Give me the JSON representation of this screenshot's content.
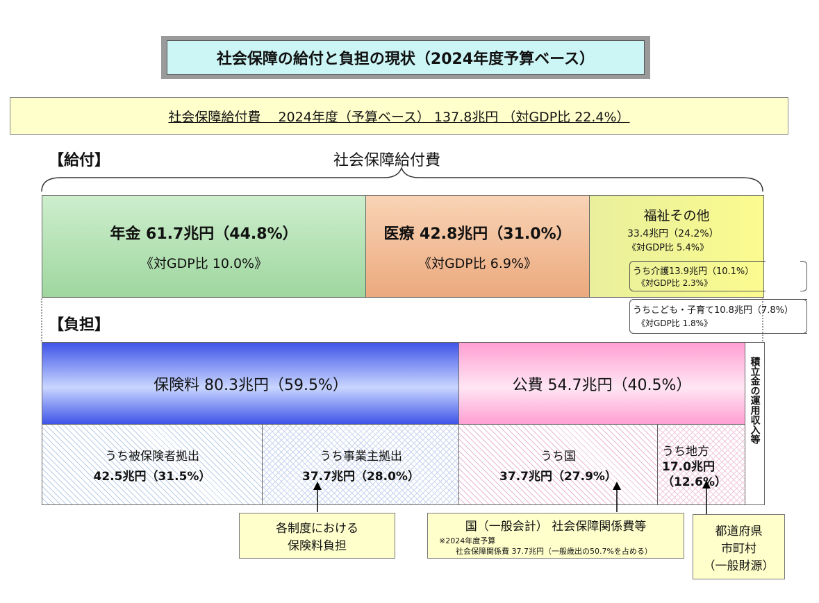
{
  "title": "社会保障の給付と負担の現状（2024年度予算ベース）",
  "summary": "社会保障給付費　 2024年度（予算ベース） 137.8兆円 （対GDP比  22.4%）",
  "benefits": {
    "section_label": "【給付】",
    "brace_label": "社会保障給付費",
    "pension": {
      "label": "年金  61.7兆円（44.8%）",
      "gdp": "《対GDP比   10.0%》",
      "value_trillion_yen": 61.7,
      "share_pct": 44.8,
      "gdp_pct": 10.0
    },
    "medical": {
      "label": "医療  42.8兆円（31.0%）",
      "gdp": "《対GDP比   6.9%》",
      "value_trillion_yen": 42.8,
      "share_pct": 31.0,
      "gdp_pct": 6.9
    },
    "welfare": {
      "label": "福祉その他",
      "amount": "33.4兆円（24.2%）",
      "gdp": "《対GDP比 5.4%》",
      "care_line1": "うち介護13.9兆円（10.1%）",
      "care_line2": "《対GDP比 2.3%》",
      "child_line1": "うちこども・子育て10.8兆円（7.8%）",
      "child_line2": "《対GDP比  1.8%》",
      "value_trillion_yen": 33.4,
      "share_pct": 24.2,
      "gdp_pct": 5.4
    }
  },
  "burden": {
    "section_label": "【負担】",
    "insurance": {
      "label": "保険料  80.3兆円（59.5%）",
      "value_trillion_yen": 80.3,
      "share_pct": 59.5
    },
    "public": {
      "label": "公費  54.7兆円（40.5%）",
      "value_trillion_yen": 54.7,
      "share_pct": 40.5
    },
    "reserve": "積立金の運用収入等",
    "insured": {
      "line1": "うち被保険者拠出",
      "line2": "42.5兆円（31.5%）",
      "value_trillion_yen": 42.5,
      "share_pct": 31.5
    },
    "employer": {
      "line1": "うち事業主拠出",
      "line2": "37.7兆円（28.0%）",
      "value_trillion_yen": 37.7,
      "share_pct": 28.0
    },
    "national": {
      "line1": "うち国",
      "line2": "37.7兆円（27.9%）",
      "value_trillion_yen": 37.7,
      "share_pct": 27.9
    },
    "local": {
      "line1": "うち地方",
      "line2": "17.0兆円",
      "line3": "（12.6%）",
      "value_trillion_yen": 17.0,
      "share_pct": 12.6
    }
  },
  "notes": {
    "premium_line1": "各制度における",
    "premium_line2": "保険料負担",
    "national_title": "国（一般会計） 社会保障関係費等",
    "national_sub1": "※2024年度予算",
    "national_sub2": "社会保障関係費 37.7兆円（一般歳出の50.7%を占める）",
    "local_line1": "都道府県",
    "local_line2": "市町村",
    "local_line3": "（一般財源）"
  }
}
